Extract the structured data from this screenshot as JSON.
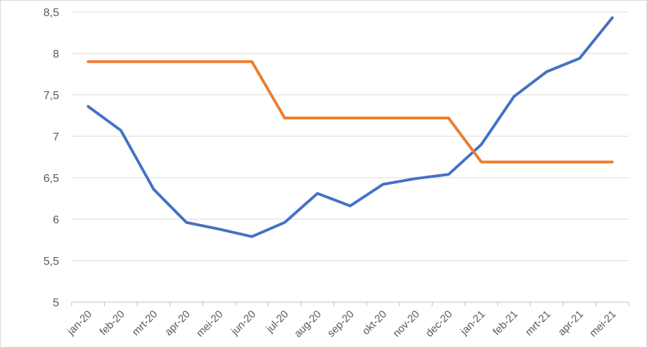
{
  "chart_data": {
    "type": "line",
    "categories": [
      "jan-20",
      "feb-20",
      "mrt-20",
      "apr-20",
      "mei-20",
      "jun-20",
      "jul-20",
      "aug-20",
      "sep-20",
      "okt-20",
      "nov-20",
      "dec-20",
      "jan-21",
      "feb-21",
      "mrt-21",
      "apr-21",
      "mei-21"
    ],
    "series": [
      {
        "color": "#4472C4",
        "values": [
          7.36,
          7.07,
          6.36,
          5.96,
          5.88,
          5.79,
          5.96,
          6.31,
          6.16,
          6.42,
          6.49,
          6.54,
          6.9,
          7.48,
          7.78,
          7.94,
          8.43
        ]
      },
      {
        "color": "#ED7D31",
        "values": [
          7.9,
          7.9,
          7.9,
          7.9,
          7.9,
          7.9,
          7.22,
          7.22,
          7.22,
          7.22,
          7.22,
          7.22,
          6.69,
          6.69,
          6.69,
          6.69,
          6.69
        ]
      }
    ],
    "yticks": [
      "5",
      "5,5",
      "6",
      "6,5",
      "7",
      "7,5",
      "8",
      "8,5"
    ],
    "ylim": [
      5,
      8.5
    ],
    "grid": true,
    "legend": "none"
  }
}
